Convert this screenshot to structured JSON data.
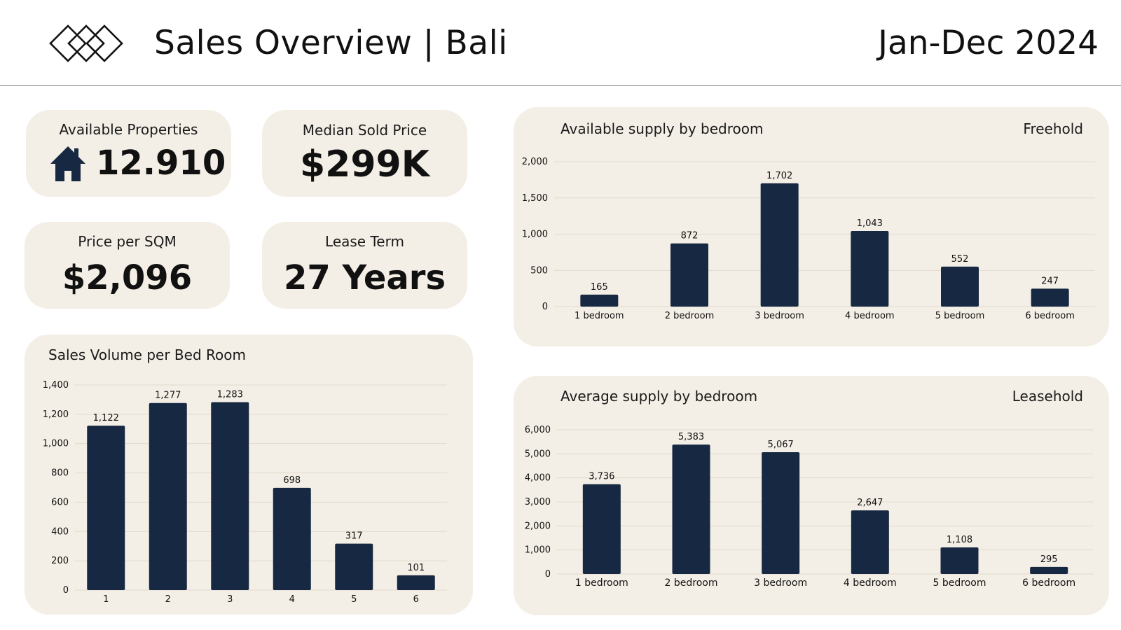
{
  "header": {
    "title": "Sales Overview | Bali",
    "period": "Jan-Dec 2024"
  },
  "kpis": {
    "available_properties": {
      "label": "Available Properties",
      "value": "12.910",
      "icon": "house-icon"
    },
    "median_sold_price": {
      "label": "Median Sold Price",
      "value": "$299K"
    },
    "price_per_sqm": {
      "label": "Price per SQM",
      "value": "$2,096"
    },
    "lease_term": {
      "label": "Lease Term",
      "value": "27 Years"
    }
  },
  "colors": {
    "bar": "#172842",
    "card": "#f4efe6",
    "grid": "#dfd8cc"
  },
  "charts": {
    "sales_volume": {
      "title": "Sales Volume per Bed Room"
    },
    "freehold": {
      "title": "Available supply by bedroom",
      "tag": "Freehold"
    },
    "leasehold": {
      "title": "Average supply by bedroom",
      "tag": "Leasehold"
    }
  },
  "chart_data": [
    {
      "id": "sales_volume",
      "type": "bar",
      "title": "Sales Volume per Bed Room",
      "categories": [
        "1",
        "2",
        "3",
        "4",
        "5",
        "6"
      ],
      "values": [
        1122,
        1277,
        1283,
        698,
        317,
        101
      ],
      "value_labels": [
        "1,122",
        "1,277",
        "1,283",
        "698",
        "317",
        "101"
      ],
      "ylim": [
        0,
        1400
      ],
      "yticks": [
        0,
        200,
        400,
        600,
        800,
        1000,
        1200,
        1400
      ],
      "ytick_labels": [
        "0",
        "200",
        "400",
        "600",
        "800",
        "1,000",
        "1,200",
        "1,400"
      ],
      "grid": true
    },
    {
      "id": "freehold",
      "type": "bar",
      "title": "Available supply by bedroom",
      "subtitle": "Freehold",
      "categories": [
        "1 bedroom",
        "2 bedroom",
        "3 bedroom",
        "4 bedroom",
        "5 bedroom",
        "6 bedroom"
      ],
      "values": [
        165,
        872,
        1702,
        1043,
        552,
        247
      ],
      "value_labels": [
        "165",
        "872",
        "1,702",
        "1,043",
        "552",
        "247"
      ],
      "ylim": [
        0,
        2000
      ],
      "yticks": [
        0,
        500,
        1000,
        1500,
        2000
      ],
      "ytick_labels": [
        "0",
        "500",
        "1,000",
        "1,500",
        "2,000"
      ],
      "grid": true
    },
    {
      "id": "leasehold",
      "type": "bar",
      "title": "Average supply by bedroom",
      "subtitle": "Leasehold",
      "categories": [
        "1 bedroom",
        "2 bedroom",
        "3 bedroom",
        "4 bedroom",
        "5 bedroom",
        "6 bedroom"
      ],
      "values": [
        3736,
        5383,
        5067,
        2647,
        1108,
        295
      ],
      "value_labels": [
        "3,736",
        "5,383",
        "5,067",
        "2,647",
        "1,108",
        "295"
      ],
      "ylim": [
        0,
        6000
      ],
      "yticks": [
        0,
        1000,
        2000,
        3000,
        4000,
        5000,
        6000
      ],
      "ytick_labels": [
        "0",
        "1,000",
        "2,000",
        "3,000",
        "4,000",
        "5,000",
        "6,000"
      ],
      "grid": true
    }
  ]
}
